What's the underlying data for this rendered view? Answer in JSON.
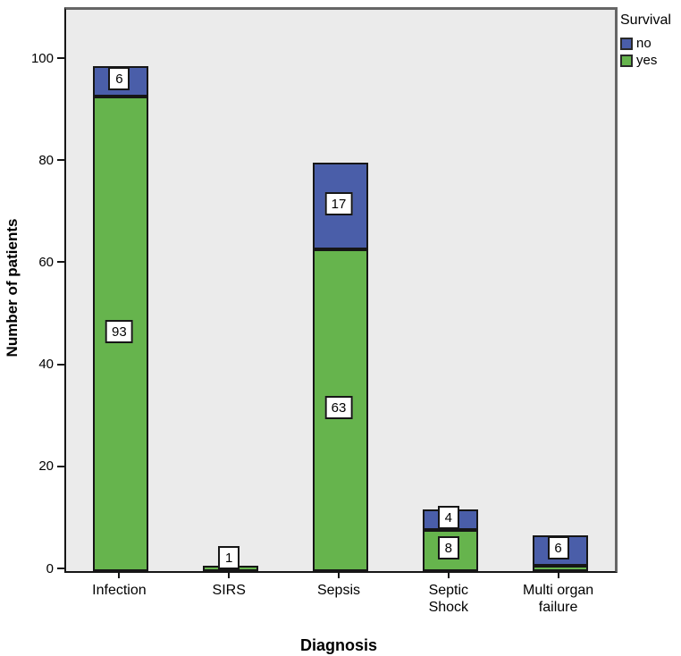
{
  "chart_data": {
    "type": "bar",
    "stacked": true,
    "title": "",
    "xlabel": "Diagnosis",
    "ylabel": "Number of patients",
    "categories": [
      "Infection",
      "SIRS",
      "Sepsis",
      "Septic\nShock",
      "Multi organ\nfailure"
    ],
    "series": [
      {
        "name": "yes",
        "color": "#66b44d",
        "values": [
          93,
          1,
          63,
          8,
          1
        ],
        "labels": [
          "93",
          "1",
          "63",
          "8",
          null
        ]
      },
      {
        "name": "no",
        "color": "#4a5ea9",
        "values": [
          6,
          0,
          17,
          4,
          6
        ],
        "labels": [
          "6",
          null,
          "17",
          "4",
          "6"
        ]
      }
    ],
    "totals": [
      99,
      1,
      80,
      12,
      7
    ],
    "yticks": [
      0,
      20,
      40,
      60,
      80,
      100
    ],
    "ylim": [
      0,
      110
    ],
    "grid": false,
    "plot_background": "#ebebeb",
    "legend": {
      "title": "Survival",
      "position": "top-right",
      "entries": [
        {
          "label": "no",
          "color": "#4a5ea9"
        },
        {
          "label": "yes",
          "color": "#66b44d"
        }
      ]
    }
  }
}
